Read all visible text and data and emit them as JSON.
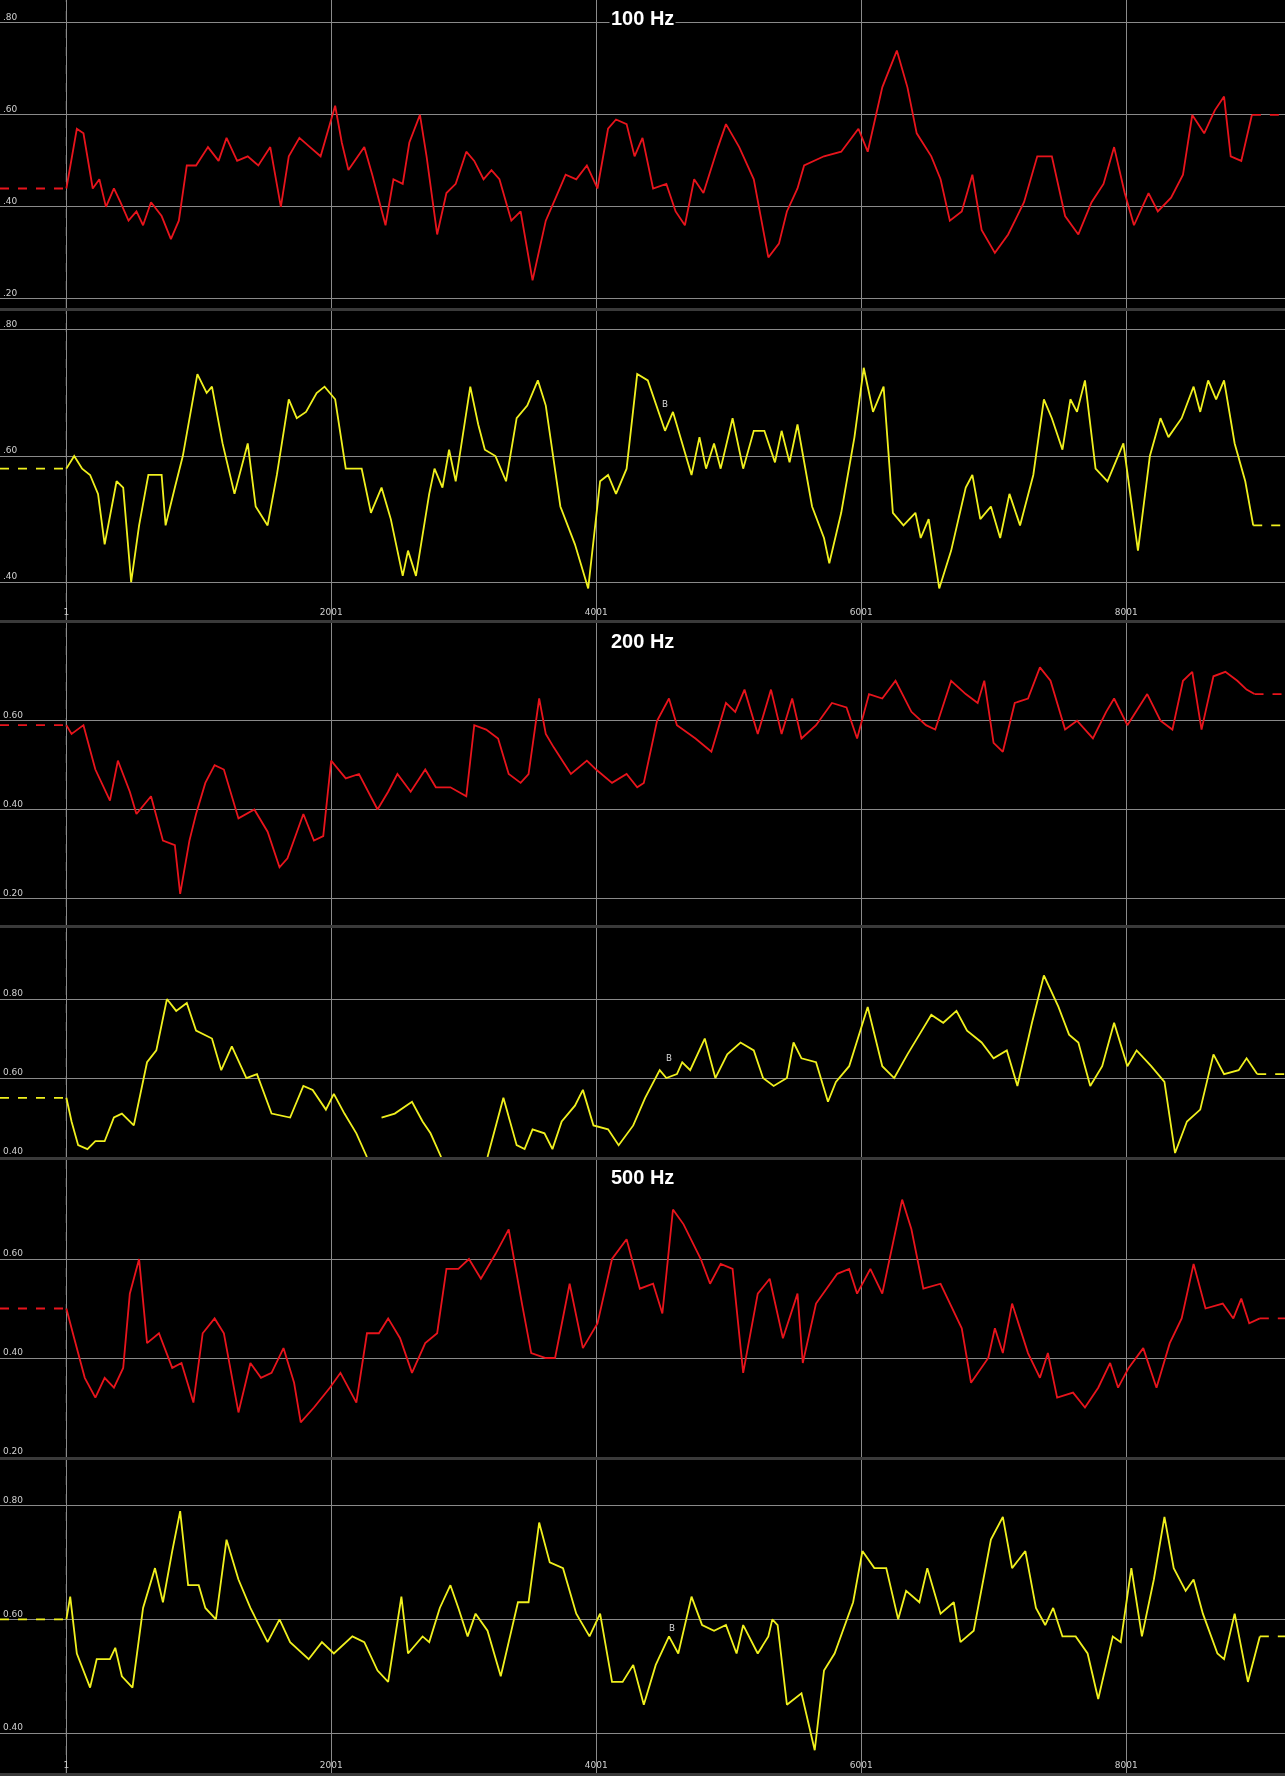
{
  "chart_data": [
    {
      "type": "line",
      "title": "100 Hz",
      "xlim": [
        -500,
        9200
      ],
      "xticks": [
        1,
        2001,
        4001,
        6001,
        8001
      ],
      "ylim": [
        0.18,
        0.85
      ],
      "yticks": [
        {
          "value": 0.8,
          "label": ".80"
        },
        {
          "value": 0.6,
          "label": ".60"
        },
        {
          "value": 0.4,
          "label": ".40"
        },
        {
          "value": 0.2,
          "label": ".20"
        }
      ],
      "grid": true,
      "tick_labels": "y",
      "ref_lines": [
        {
          "axis": "x",
          "value": 1,
          "color": "#bbbbbb",
          "line_style": "dashed"
        }
      ],
      "series": [
        {
          "color": "#e8141c",
          "x": [
            1,
            80,
            130,
            200,
            250,
            300,
            360,
            410,
            470,
            530,
            580,
            640,
            720,
            790,
            850,
            910,
            980,
            1070,
            1150,
            1210,
            1290,
            1370,
            1450,
            1540,
            1620,
            1680,
            1760,
            1840,
            1920,
            2030,
            2080,
            2130,
            2250,
            2310,
            2410,
            2470,
            2540,
            2590,
            2670,
            2720,
            2800,
            2870,
            2940,
            3020,
            3080,
            3150,
            3210,
            3270,
            3360,
            3430,
            3520,
            3620,
            3710,
            3770,
            3850,
            3930,
            4010,
            4090,
            4150,
            4230,
            4290,
            4350,
            4430,
            4530,
            4600,
            4670,
            4740,
            4810,
            4920,
            4980,
            5080,
            5190,
            5300,
            5380,
            5440,
            5520,
            5570,
            5720,
            5850,
            5980,
            6050,
            6160,
            6270,
            6350,
            6420,
            6530,
            6600,
            6670,
            6760,
            6840,
            6910,
            7010,
            7110,
            7230,
            7330,
            7440,
            7540,
            7640,
            7740,
            7830,
            7910,
            7990,
            8060,
            8170,
            8240,
            8340,
            8430,
            8500,
            8590,
            8670,
            8740,
            8790,
            8870,
            8950
          ],
          "values": [
            0.44,
            0.57,
            0.56,
            0.44,
            0.46,
            0.4,
            0.44,
            0.41,
            0.37,
            0.39,
            0.36,
            0.41,
            0.38,
            0.33,
            0.37,
            0.49,
            0.49,
            0.53,
            0.5,
            0.55,
            0.5,
            0.51,
            0.49,
            0.53,
            0.4,
            0.51,
            0.55,
            0.53,
            0.51,
            0.62,
            0.54,
            0.48,
            0.53,
            0.47,
            0.36,
            0.46,
            0.45,
            0.54,
            0.6,
            0.51,
            0.34,
            0.43,
            0.45,
            0.52,
            0.5,
            0.46,
            0.48,
            0.46,
            0.37,
            0.39,
            0.24,
            0.37,
            0.43,
            0.47,
            0.46,
            0.49,
            0.44,
            0.57,
            0.59,
            0.58,
            0.51,
            0.55,
            0.44,
            0.45,
            0.39,
            0.36,
            0.46,
            0.43,
            0.53,
            0.58,
            0.53,
            0.46,
            0.29,
            0.32,
            0.39,
            0.44,
            0.49,
            0.51,
            0.52,
            0.57,
            0.52,
            0.66,
            0.74,
            0.66,
            0.56,
            0.51,
            0.46,
            0.37,
            0.39,
            0.47,
            0.35,
            0.3,
            0.34,
            0.41,
            0.51,
            0.51,
            0.38,
            0.34,
            0.41,
            0.45,
            0.53,
            0.43,
            0.36,
            0.43,
            0.39,
            0.42,
            0.47,
            0.6,
            0.56,
            0.61,
            0.64,
            0.51,
            0.5,
            0.6
          ]
        },
        {
          "color": "#e8141c",
          "line_style": "dashed",
          "x": [
            -500,
            1
          ],
          "values": [
            0.44,
            0.44
          ]
        },
        {
          "color": "#e8141c",
          "line_style": "dashed",
          "x": [
            8950,
            9200
          ],
          "values": [
            0.6,
            0.6
          ]
        }
      ]
    },
    {
      "type": "line",
      "xlim": [
        -500,
        9200
      ],
      "xticks": [
        1,
        2001,
        4001,
        6001,
        8001
      ],
      "ylim": [
        0.34,
        0.83
      ],
      "yticks": [
        {
          "value": 0.8,
          "label": ".80"
        },
        {
          "value": 0.6,
          "label": ".60"
        },
        {
          "value": 0.4,
          "label": ".40"
        }
      ],
      "grid": true,
      "ref_lines": [
        {
          "axis": "x",
          "value": 1,
          "color": "#bbbbbb",
          "line_style": "dashed"
        }
      ],
      "annotations": [
        {
          "text": "B",
          "x": 4470,
          "y": 0.67
        }
      ],
      "series": [
        {
          "color": "#f0f01e",
          "x": [
            1,
            60,
            120,
            180,
            240,
            290,
            380,
            430,
            490,
            550,
            620,
            720,
            750,
            820,
            880,
            990,
            1060,
            1100,
            1180,
            1270,
            1370,
            1430,
            1520,
            1590,
            1680,
            1740,
            1810,
            1890,
            1950,
            2030,
            2110,
            2230,
            2300,
            2380,
            2450,
            2540,
            2580,
            2640,
            2740,
            2780,
            2840,
            2890,
            2940,
            3050,
            3110,
            3160,
            3240,
            3320,
            3400,
            3480,
            3560,
            3620,
            3730,
            3840,
            3940,
            4030,
            4090,
            4150,
            4230,
            4310,
            4390,
            4520,
            4580,
            4720,
            4780,
            4830,
            4890,
            4940,
            5030,
            5110,
            5190,
            5270,
            5350,
            5400,
            5460,
            5520,
            5630,
            5720,
            5760,
            5850,
            5950,
            6020,
            6090,
            6170,
            6240,
            6320,
            6410,
            6450,
            6510,
            6590,
            6680,
            6790,
            6840,
            6900,
            6980,
            7050,
            7120,
            7200,
            7300,
            7380,
            7440,
            7520,
            7580,
            7630,
            7690,
            7770,
            7860,
            7980,
            8090,
            8180,
            8260,
            8320,
            8420,
            8510,
            8560,
            8620,
            8680,
            8740,
            8820,
            8900,
            8960
          ],
          "values": [
            0.58,
            0.6,
            0.58,
            0.57,
            0.54,
            0.46,
            0.56,
            0.55,
            0.4,
            0.49,
            0.57,
            0.57,
            0.49,
            0.55,
            0.6,
            0.73,
            0.7,
            0.71,
            0.62,
            0.54,
            0.62,
            0.52,
            0.49,
            0.57,
            0.69,
            0.66,
            0.67,
            0.7,
            0.71,
            0.69,
            0.58,
            0.58,
            0.51,
            0.55,
            0.5,
            0.41,
            0.45,
            0.41,
            0.54,
            0.58,
            0.55,
            0.61,
            0.56,
            0.71,
            0.65,
            0.61,
            0.6,
            0.56,
            0.66,
            0.68,
            0.72,
            0.68,
            0.52,
            0.46,
            0.39,
            0.56,
            0.57,
            0.54,
            0.58,
            0.73,
            0.72,
            0.64,
            0.67,
            0.57,
            0.63,
            0.58,
            0.62,
            0.58,
            0.66,
            0.58,
            0.64,
            0.64,
            0.59,
            0.64,
            0.59,
            0.65,
            0.52,
            0.47,
            0.43,
            0.51,
            0.63,
            0.74,
            0.67,
            0.71,
            0.51,
            0.49,
            0.51,
            0.47,
            0.5,
            0.39,
            0.45,
            0.55,
            0.57,
            0.5,
            0.52,
            0.47,
            0.54,
            0.49,
            0.57,
            0.69,
            0.66,
            0.61,
            0.69,
            0.67,
            0.72,
            0.58,
            0.56,
            0.62,
            0.45,
            0.6,
            0.66,
            0.63,
            0.66,
            0.71,
            0.67,
            0.72,
            0.69,
            0.72,
            0.62,
            0.56,
            0.49
          ]
        },
        {
          "color": "#f0f01e",
          "line_style": "dashed",
          "x": [
            -500,
            1
          ],
          "values": [
            0.58,
            0.58
          ]
        },
        {
          "color": "#f0f01e",
          "line_style": "dashed",
          "x": [
            8960,
            9200
          ],
          "values": [
            0.49,
            0.49
          ]
        }
      ]
    },
    {
      "type": "line",
      "title": "200 Hz",
      "xlim": [
        -500,
        9200
      ],
      "xticks": [
        1,
        2001,
        4001,
        6001,
        8001
      ],
      "ylim": [
        0.14,
        0.82
      ],
      "yticks": [
        {
          "value": 0.6,
          "label": "0.60"
        },
        {
          "value": 0.4,
          "label": "0.40"
        },
        {
          "value": 0.2,
          "label": "0.20"
        }
      ],
      "grid": true,
      "tick_labels": "y",
      "ref_lines": [
        {
          "axis": "x",
          "value": 1,
          "color": "#bbbbbb",
          "line_style": "dashed"
        }
      ],
      "series": [
        {
          "color": "#e8141c",
          "x": [
            1,
            40,
            130,
            220,
            330,
            390,
            480,
            530,
            640,
            730,
            820,
            860,
            930,
            980,
            1050,
            1120,
            1190,
            1300,
            1420,
            1520,
            1610,
            1670,
            1790,
            1870,
            1940,
            2000,
            2110,
            2210,
            2350,
            2430,
            2500,
            2600,
            2710,
            2790,
            2900,
            3020,
            3080,
            3170,
            3260,
            3340,
            3430,
            3490,
            3570,
            3620,
            3680,
            3810,
            3930,
            4000,
            4120,
            4230,
            4310,
            4360,
            4460,
            4550,
            4610,
            4750,
            4870,
            4980,
            5050,
            5120,
            5220,
            5320,
            5400,
            5480,
            5550,
            5660,
            5780,
            5890,
            5970,
            6060,
            6160,
            6260,
            6380,
            6490,
            6560,
            6680,
            6790,
            6880,
            6930,
            7000,
            7070,
            7160,
            7260,
            7350,
            7430,
            7540,
            7630,
            7750,
            7850,
            7910,
            8010,
            8160,
            8260,
            8350,
            8430,
            8500,
            8570,
            8660,
            8750,
            8840,
            8910,
            8970
          ],
          "values": [
            0.59,
            0.57,
            0.59,
            0.49,
            0.42,
            0.51,
            0.44,
            0.39,
            0.43,
            0.33,
            0.32,
            0.21,
            0.33,
            0.39,
            0.46,
            0.5,
            0.49,
            0.38,
            0.4,
            0.35,
            0.27,
            0.29,
            0.39,
            0.33,
            0.34,
            0.51,
            0.47,
            0.48,
            0.4,
            0.44,
            0.48,
            0.44,
            0.49,
            0.45,
            0.45,
            0.43,
            0.59,
            0.58,
            0.56,
            0.48,
            0.46,
            0.48,
            0.65,
            0.57,
            0.54,
            0.48,
            0.51,
            0.49,
            0.46,
            0.48,
            0.45,
            0.46,
            0.6,
            0.65,
            0.59,
            0.56,
            0.53,
            0.64,
            0.62,
            0.67,
            0.57,
            0.67,
            0.57,
            0.65,
            0.56,
            0.59,
            0.64,
            0.63,
            0.56,
            0.66,
            0.65,
            0.69,
            0.62,
            0.59,
            0.58,
            0.69,
            0.66,
            0.64,
            0.69,
            0.55,
            0.53,
            0.64,
            0.65,
            0.72,
            0.69,
            0.58,
            0.6,
            0.56,
            0.62,
            0.65,
            0.59,
            0.66,
            0.6,
            0.58,
            0.69,
            0.71,
            0.58,
            0.7,
            0.71,
            0.69,
            0.67,
            0.66
          ]
        },
        {
          "color": "#e8141c",
          "line_style": "dashed",
          "x": [
            -500,
            1
          ],
          "values": [
            0.59,
            0.59
          ]
        },
        {
          "color": "#e8141c",
          "line_style": "dashed",
          "x": [
            8970,
            9200
          ],
          "values": [
            0.66,
            0.66
          ]
        }
      ]
    },
    {
      "type": "line",
      "xlim": [
        -500,
        9200
      ],
      "xticks": [
        1,
        2001,
        4001,
        6001,
        8001
      ],
      "ylim": [
        0.4,
        0.98
      ],
      "yticks": [
        {
          "value": 0.8,
          "label": "0.80"
        },
        {
          "value": 0.6,
          "label": "0.60"
        },
        {
          "value": 0.4,
          "label": "0.40"
        }
      ],
      "grid": true,
      "tick_labels": "y",
      "ref_lines": [
        {
          "axis": "x",
          "value": 1,
          "color": "#bbbbbb",
          "line_style": "dashed"
        }
      ],
      "annotations": [
        {
          "text": "B",
          "x": 4500,
          "y": 0.63
        }
      ],
      "series": [
        {
          "color": "#f0f01e",
          "x": [
            1,
            40,
            90,
            160,
            220,
            290,
            360,
            420,
            510,
            610,
            680,
            760,
            830,
            910,
            980,
            1100,
            1170,
            1250,
            1360,
            1440,
            1550,
            1690,
            1790,
            1860,
            1960,
            2020,
            2100,
            2190,
            2270,
            2300,
            2380,
            2480,
            2610,
            2690,
            2750,
            2830,
            2900,
            3180,
            3300,
            3400,
            3460,
            3520,
            3610,
            3670,
            3740,
            3840,
            3900,
            3980,
            4090,
            4170,
            4280,
            4370,
            4480,
            4530,
            4610,
            4650,
            4710,
            4820,
            4900,
            4990,
            5090,
            5190,
            5260,
            5340,
            5440,
            5490,
            5550,
            5660,
            5750,
            5810,
            5910,
            6050,
            6160,
            6250,
            6350,
            6440,
            6530,
            6620,
            6720,
            6800,
            6910,
            7000,
            7100,
            7180,
            7290,
            7380,
            7490,
            7570,
            7640,
            7730,
            7820,
            7910,
            8010,
            8080,
            8190,
            8290,
            8370,
            8460,
            8560,
            8660,
            8740,
            8850,
            8910,
            8990
          ],
          "values": [
            0.55,
            0.49,
            0.43,
            0.42,
            0.44,
            0.44,
            0.5,
            0.51,
            0.48,
            0.64,
            0.67,
            0.8,
            0.77,
            0.79,
            0.72,
            0.7,
            0.62,
            0.68,
            0.6,
            0.61,
            0.51,
            0.5,
            0.58,
            0.57,
            0.52,
            0.56,
            0.51,
            0.46,
            0.4,
            null,
            0.5,
            0.51,
            0.54,
            0.49,
            0.46,
            0.4,
            null,
            0.4,
            0.55,
            0.43,
            0.42,
            0.47,
            0.46,
            0.42,
            0.49,
            0.53,
            0.57,
            0.48,
            0.47,
            0.43,
            0.48,
            0.55,
            0.62,
            0.6,
            0.61,
            0.64,
            0.62,
            0.7,
            0.6,
            0.66,
            0.69,
            0.67,
            0.6,
            0.58,
            0.6,
            0.69,
            0.65,
            0.64,
            0.54,
            0.59,
            0.63,
            0.78,
            0.63,
            0.6,
            0.66,
            0.71,
            0.76,
            0.74,
            0.77,
            0.72,
            0.69,
            0.65,
            0.67,
            0.58,
            0.74,
            0.86,
            0.78,
            0.71,
            0.69,
            0.58,
            0.63,
            0.74,
            0.63,
            0.67,
            0.63,
            0.59,
            0.41,
            0.49,
            0.52,
            0.66,
            0.61,
            0.62,
            0.65,
            0.61
          ]
        },
        {
          "color": "#f0f01e",
          "line_style": "dashed",
          "x": [
            -500,
            1
          ],
          "values": [
            0.55,
            0.55
          ]
        },
        {
          "color": "#f0f01e",
          "line_style": "dashed",
          "x": [
            8990,
            9200
          ],
          "values": [
            0.61,
            0.61
          ]
        }
      ]
    },
    {
      "type": "line",
      "title": "500 Hz",
      "xlim": [
        -500,
        9200
      ],
      "xticks": [
        1,
        2001,
        4001,
        6001,
        8001
      ],
      "ylim": [
        0.2,
        0.8
      ],
      "yticks": [
        {
          "value": 0.6,
          "label": "0.60"
        },
        {
          "value": 0.4,
          "label": "0.40"
        },
        {
          "value": 0.2,
          "label": "0.20"
        }
      ],
      "grid": true,
      "tick_labels": "y",
      "ref_lines": [
        {
          "axis": "x",
          "value": 1,
          "color": "#bbbbbb",
          "line_style": "dashed"
        }
      ],
      "series": [
        {
          "color": "#e8141c",
          "x": [
            1,
            60,
            140,
            220,
            290,
            360,
            430,
            480,
            550,
            610,
            700,
            800,
            870,
            960,
            1030,
            1120,
            1190,
            1300,
            1390,
            1470,
            1550,
            1640,
            1720,
            1770,
            1870,
            1990,
            2070,
            2190,
            2270,
            2360,
            2430,
            2520,
            2610,
            2710,
            2800,
            2870,
            2960,
            3040,
            3130,
            3240,
            3340,
            3440,
            3510,
            3620,
            3690,
            3800,
            3900,
            4010,
            4120,
            4230,
            4330,
            4430,
            4500,
            4580,
            4660,
            4790,
            4860,
            4940,
            5030,
            5110,
            5220,
            5310,
            5410,
            5520,
            5560,
            5660,
            5820,
            5910,
            5970,
            6070,
            6160,
            6310,
            6380,
            6470,
            6600,
            6760,
            6830,
            6960,
            7010,
            7070,
            7140,
            7260,
            7350,
            7410,
            7480,
            7600,
            7690,
            7790,
            7880,
            7940,
            8020,
            8130,
            8230,
            8330,
            8420,
            8510,
            8600,
            8730,
            8810,
            8870,
            8930,
            9010
          ],
          "values": [
            0.5,
            0.44,
            0.36,
            0.32,
            0.36,
            0.34,
            0.38,
            0.53,
            0.6,
            0.43,
            0.45,
            0.38,
            0.39,
            0.31,
            0.45,
            0.48,
            0.45,
            0.29,
            0.39,
            0.36,
            0.37,
            0.42,
            0.35,
            0.27,
            0.3,
            0.34,
            0.37,
            0.31,
            0.45,
            0.45,
            0.48,
            0.44,
            0.37,
            0.43,
            0.45,
            0.58,
            0.58,
            0.6,
            0.56,
            0.61,
            0.66,
            0.51,
            0.41,
            0.4,
            0.4,
            0.55,
            0.42,
            0.47,
            0.6,
            0.64,
            0.54,
            0.55,
            0.49,
            0.7,
            0.67,
            0.6,
            0.55,
            0.59,
            0.58,
            0.37,
            0.53,
            0.56,
            0.44,
            0.53,
            0.39,
            0.51,
            0.57,
            0.58,
            0.53,
            0.58,
            0.53,
            0.72,
            0.66,
            0.54,
            0.55,
            0.46,
            0.35,
            0.4,
            0.46,
            0.41,
            0.51,
            0.41,
            0.36,
            0.41,
            0.32,
            0.33,
            0.3,
            0.34,
            0.39,
            0.34,
            0.38,
            0.42,
            0.34,
            0.43,
            0.48,
            0.59,
            0.5,
            0.51,
            0.48,
            0.52,
            0.47,
            0.48
          ]
        },
        {
          "color": "#e8141c",
          "line_style": "dashed",
          "x": [
            -500,
            1
          ],
          "values": [
            0.5,
            0.5
          ]
        },
        {
          "color": "#e8141c",
          "line_style": "dashed",
          "x": [
            9010,
            9200
          ],
          "values": [
            0.48,
            0.48
          ]
        }
      ]
    },
    {
      "type": "line",
      "xlim": [
        -500,
        9200
      ],
      "xticks": [
        1,
        2001,
        4001,
        6001,
        8001
      ],
      "ylim": [
        0.33,
        0.88
      ],
      "yticks": [
        {
          "value": 0.8,
          "label": "0.80"
        },
        {
          "value": 0.6,
          "label": "0.60"
        },
        {
          "value": 0.4,
          "label": "0.40"
        }
      ],
      "grid": true,
      "ref_lines": [
        {
          "axis": "x",
          "value": 1,
          "color": "#bbbbbb",
          "line_style": "dashed"
        }
      ],
      "annotations": [
        {
          "text": "B",
          "x": 4520,
          "y": 0.57
        }
      ],
      "series": [
        {
          "color": "#f0f01e",
          "x": [
            1,
            30,
            80,
            180,
            230,
            330,
            370,
            420,
            500,
            580,
            670,
            730,
            800,
            860,
            920,
            1000,
            1050,
            1130,
            1210,
            1300,
            1390,
            1520,
            1610,
            1690,
            1830,
            1930,
            2020,
            2160,
            2250,
            2350,
            2430,
            2530,
            2580,
            2690,
            2740,
            2820,
            2900,
            2960,
            3030,
            3090,
            3180,
            3280,
            3410,
            3490,
            3570,
            3650,
            3750,
            3850,
            3950,
            4030,
            4120,
            4200,
            4280,
            4360,
            4450,
            4550,
            4620,
            4720,
            4800,
            4890,
            4980,
            5060,
            5110,
            5220,
            5300,
            5330,
            5370,
            5440,
            5550,
            5650,
            5720,
            5800,
            5940,
            6010,
            6100,
            6190,
            6280,
            6340,
            6440,
            6500,
            6600,
            6700,
            6750,
            6850,
            6980,
            7070,
            7140,
            7240,
            7320,
            7390,
            7450,
            7520,
            7620,
            7710,
            7790,
            7900,
            7960,
            8040,
            8120,
            8210,
            8290,
            8360,
            8450,
            8510,
            8580,
            8690,
            8740,
            8820,
            8920,
            9010
          ],
          "values": [
            0.6,
            0.64,
            0.54,
            0.48,
            0.53,
            0.53,
            0.55,
            0.5,
            0.48,
            0.62,
            0.69,
            0.63,
            0.72,
            0.79,
            0.66,
            0.66,
            0.62,
            0.6,
            0.74,
            0.67,
            0.62,
            0.56,
            0.6,
            0.56,
            0.53,
            0.56,
            0.54,
            0.57,
            0.56,
            0.51,
            0.49,
            0.64,
            0.54,
            0.57,
            0.56,
            0.62,
            0.66,
            0.62,
            0.57,
            0.61,
            0.58,
            0.5,
            0.63,
            0.63,
            0.77,
            0.7,
            0.69,
            0.61,
            0.57,
            0.61,
            0.49,
            0.49,
            0.52,
            0.45,
            0.52,
            0.57,
            0.54,
            0.64,
            0.59,
            0.58,
            0.59,
            0.54,
            0.59,
            0.54,
            0.57,
            0.6,
            0.59,
            0.45,
            0.47,
            0.37,
            0.51,
            0.54,
            0.63,
            0.72,
            0.69,
            0.69,
            0.6,
            0.65,
            0.63,
            0.69,
            0.61,
            0.63,
            0.56,
            0.58,
            0.74,
            0.78,
            0.69,
            0.72,
            0.62,
            0.59,
            0.62,
            0.57,
            0.57,
            0.54,
            0.46,
            0.57,
            0.56,
            0.69,
            0.57,
            0.67,
            0.78,
            0.69,
            0.65,
            0.67,
            0.61,
            0.54,
            0.53,
            0.61,
            0.49,
            0.57
          ]
        },
        {
          "color": "#f0f01e",
          "line_style": "dashed",
          "x": [
            -500,
            1
          ],
          "values": [
            0.6,
            0.6
          ]
        },
        {
          "color": "#f0f01e",
          "line_style": "dashed",
          "x": [
            9010,
            9200
          ],
          "values": [
            0.57,
            0.57
          ]
        }
      ]
    }
  ]
}
